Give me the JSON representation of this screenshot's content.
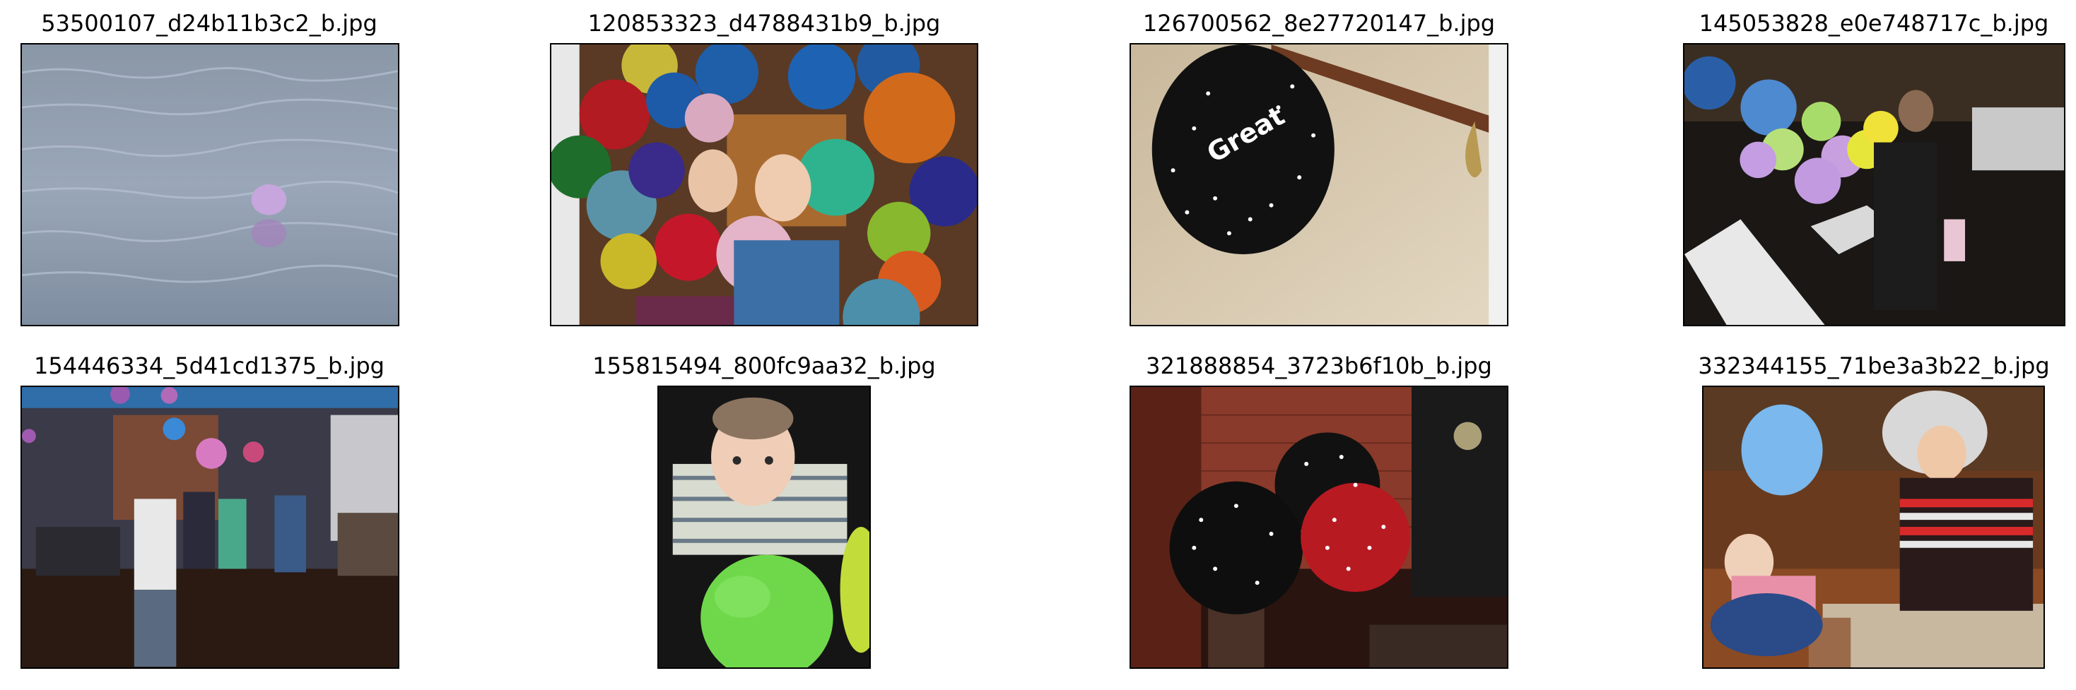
{
  "grid": {
    "images": [
      {
        "caption": "53500107_d24b11b3c2_b.jpg",
        "subject": "water-balloon-photo"
      },
      {
        "caption": "120853323_d4788431b9_b.jpg",
        "subject": "girls-in-balloons-photo"
      },
      {
        "caption": "126700562_8e27720147_b.jpg",
        "subject": "black-balloon-photo"
      },
      {
        "caption": "145053828_e0e748717c_b.jpg",
        "subject": "night-street-balloons-photo"
      },
      {
        "caption": "154446334_5d41cd1375_b.jpg",
        "subject": "party-room-photo"
      },
      {
        "caption": "155815494_800fc9aa32_b.jpg",
        "subject": "baby-green-balloon-photo"
      },
      {
        "caption": "321888854_3723b6f10b_b.jpg",
        "subject": "star-balloons-photo"
      },
      {
        "caption": "332344155_71be3a3b22_b.jpg",
        "subject": "grandma-blue-balloon-photo"
      }
    ]
  }
}
